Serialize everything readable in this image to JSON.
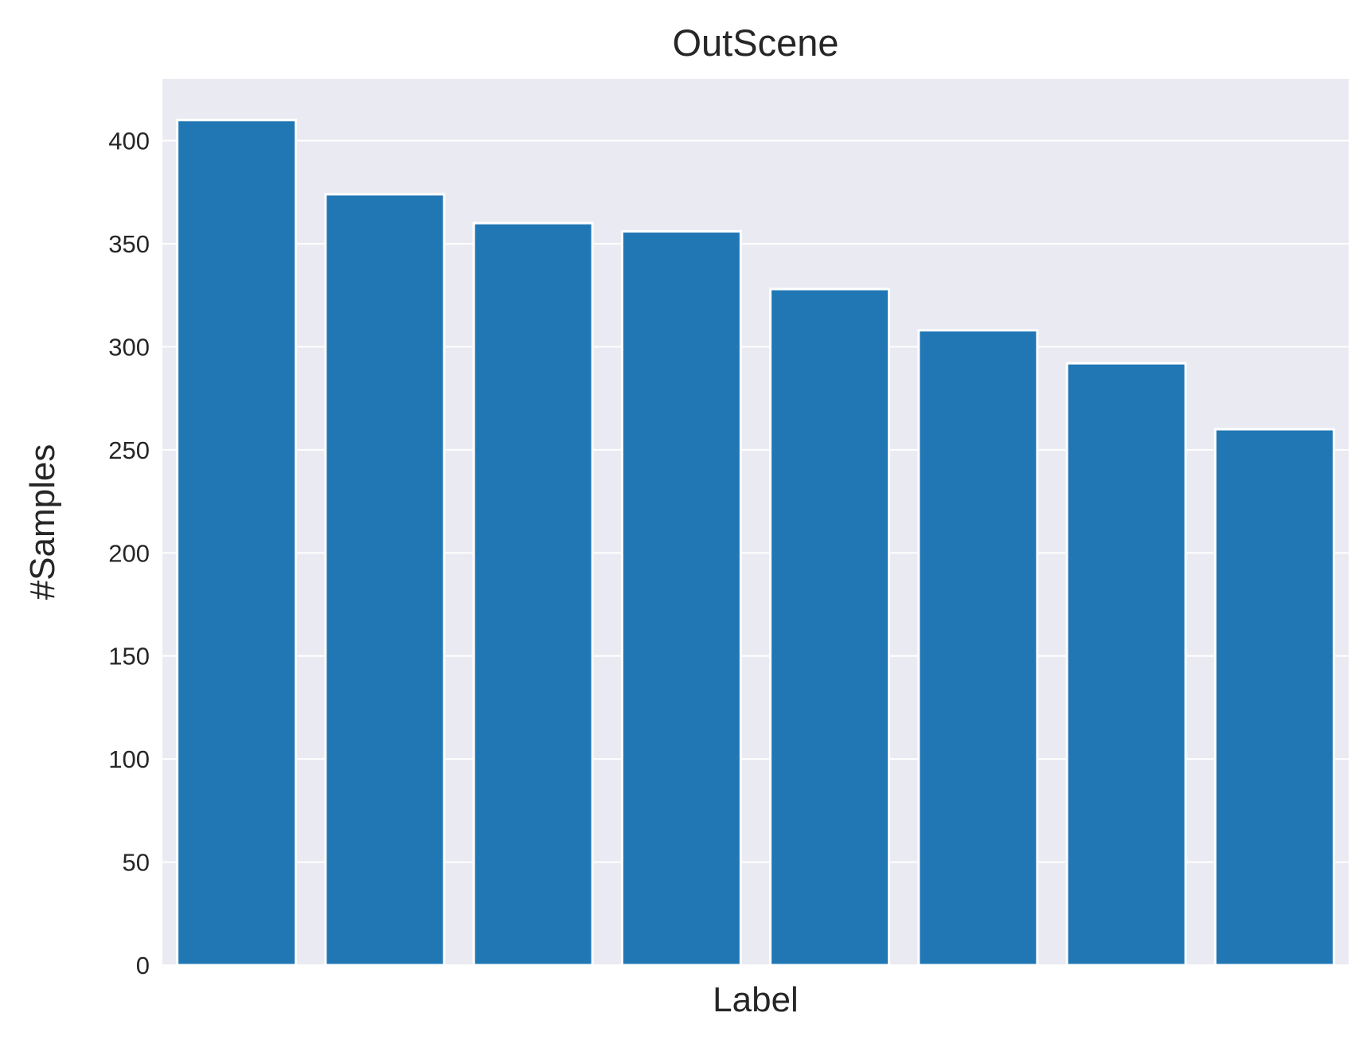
{
  "chart_data": {
    "type": "bar",
    "title": "OutScene",
    "xlabel": "Label",
    "ylabel": "#Samples",
    "categories": [
      "",
      "",
      "",
      "",
      "",
      "",
      "",
      ""
    ],
    "values": [
      410,
      374,
      360,
      356,
      328,
      308,
      292,
      260
    ],
    "ylim": [
      0,
      430
    ],
    "yticks": [
      0,
      50,
      100,
      150,
      200,
      250,
      300,
      350,
      400
    ],
    "grid": true,
    "legend": "none",
    "colors": {
      "bar": "#2077b4",
      "plot_background": "#eaeaf2",
      "grid": "#ffffff",
      "text": "#262626"
    }
  }
}
